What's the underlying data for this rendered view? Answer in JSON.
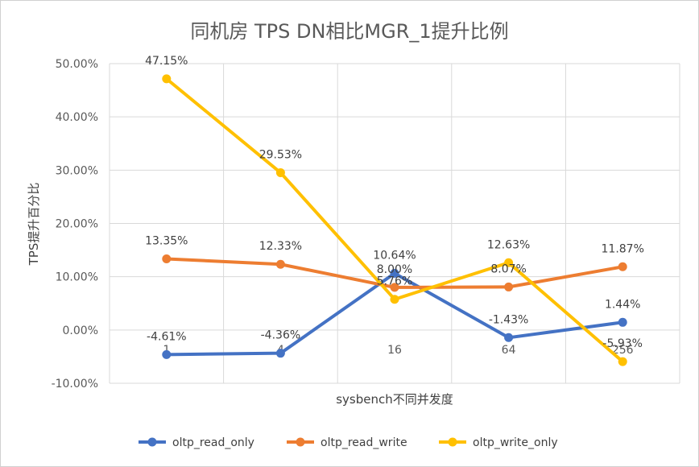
{
  "chart_data": {
    "type": "line",
    "title": "同机房 TPS DN相比MGR_1提升比例",
    "xlabel": "sysbench不同并发度",
    "ylabel": "TPS提升百分比",
    "categories": [
      "1",
      "4",
      "16",
      "64",
      "256"
    ],
    "ylim": [
      -10,
      50
    ],
    "ytick_values": [
      -10,
      0,
      10,
      20,
      30,
      40,
      50
    ],
    "ytick_labels": [
      "-10.00%",
      "0.00%",
      "10.00%",
      "20.00%",
      "30.00%",
      "40.00%",
      "50.00%"
    ],
    "grid": true,
    "legend_position": "bottom",
    "series": [
      {
        "name": "oltp_read_only",
        "color": "#4472C4",
        "values": [
          -4.61,
          -4.36,
          10.64,
          -1.43,
          1.44
        ],
        "labels": [
          "-4.61%",
          "-4.36%",
          "10.64%",
          "-1.43%",
          "1.44%"
        ]
      },
      {
        "name": "oltp_read_write",
        "color": "#ED7D31",
        "values": [
          13.35,
          12.33,
          8.0,
          8.07,
          11.87
        ],
        "labels": [
          "13.35%",
          "12.33%",
          "8.00%",
          "8.07%",
          "11.87%"
        ]
      },
      {
        "name": "oltp_write_only",
        "color": "#FFC000",
        "values": [
          47.15,
          29.53,
          5.76,
          12.63,
          -5.93
        ],
        "labels": [
          "47.15%",
          "29.53%",
          "5.76%",
          "12.63%",
          "-5.93%"
        ]
      }
    ]
  }
}
